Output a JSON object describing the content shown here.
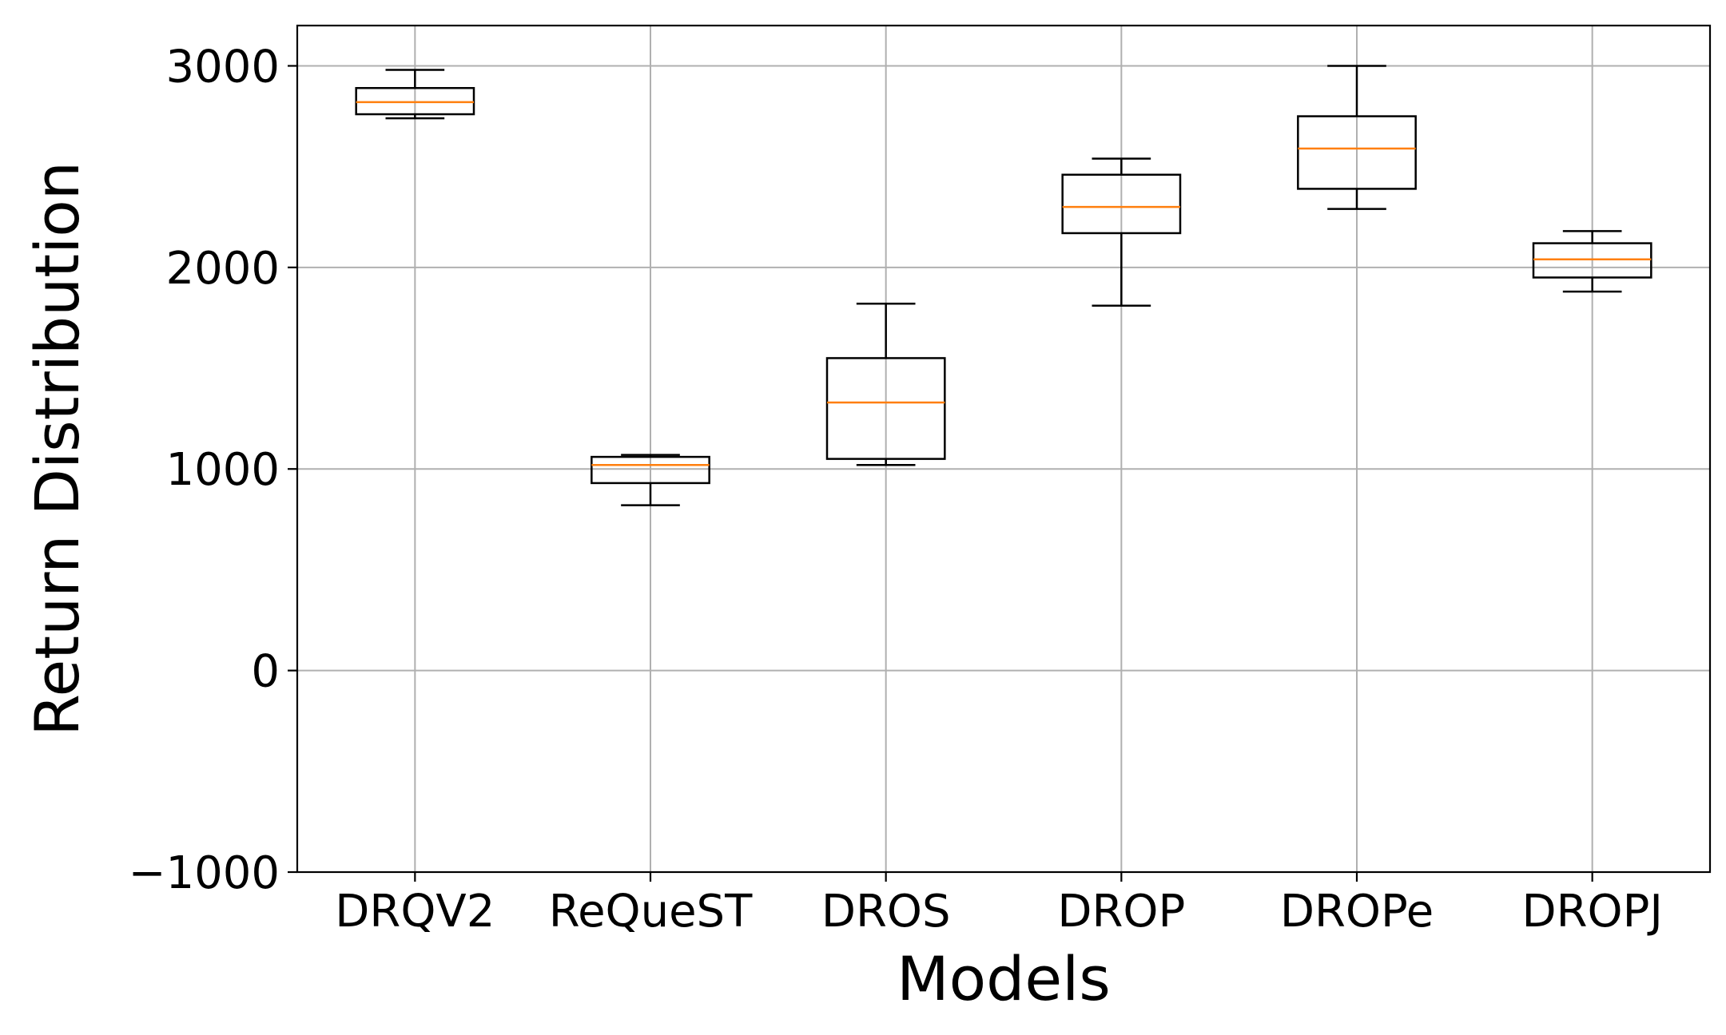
{
  "chart_data": {
    "type": "box",
    "xlabel": "Models",
    "ylabel": "Return Distribution",
    "ylim": [
      -1000,
      3200
    ],
    "yticks": [
      -1000,
      0,
      1000,
      2000,
      3000
    ],
    "ytick_labels": [
      "−1000",
      "0",
      "1000",
      "2000",
      "3000"
    ],
    "grid": true,
    "categories": [
      "DRQV2",
      "ReQueST",
      "DROS",
      "DROP",
      "DROPe",
      "DROPJ"
    ],
    "boxes": [
      {
        "name": "DRQV2",
        "whisker_low": 2740,
        "q1": 2760,
        "median": 2820,
        "q3": 2890,
        "whisker_high": 2980
      },
      {
        "name": "ReQueST",
        "whisker_low": 820,
        "q1": 930,
        "median": 1020,
        "q3": 1060,
        "whisker_high": 1070
      },
      {
        "name": "DROS",
        "whisker_low": 1020,
        "q1": 1050,
        "median": 1330,
        "q3": 1550,
        "whisker_high": 1820
      },
      {
        "name": "DROP",
        "whisker_low": 1810,
        "q1": 2170,
        "median": 2300,
        "q3": 2460,
        "whisker_high": 2540
      },
      {
        "name": "DROPe",
        "whisker_low": 2290,
        "q1": 2390,
        "median": 2590,
        "q3": 2750,
        "whisker_high": 3000
      },
      {
        "name": "DROPJ",
        "whisker_low": 1880,
        "q1": 1950,
        "median": 2040,
        "q3": 2120,
        "whisker_high": 2180
      }
    ],
    "colors": {
      "box": "#000000",
      "median": "#ff7f0e",
      "grid": "#b0b0b0"
    }
  }
}
